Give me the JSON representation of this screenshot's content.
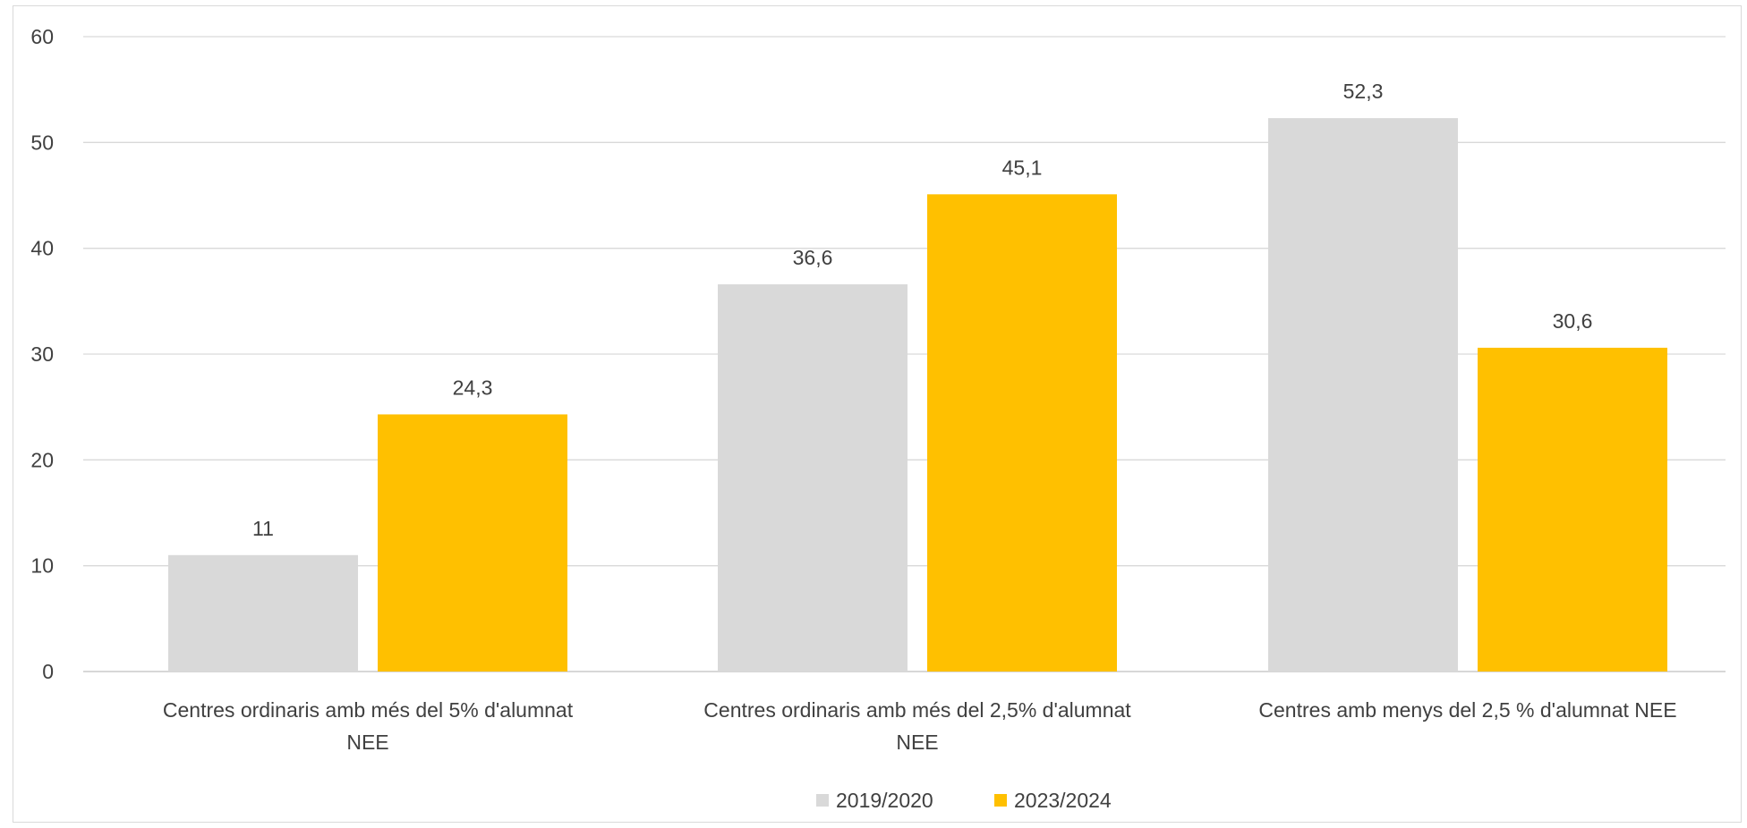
{
  "chart_data": {
    "type": "bar",
    "categories": [
      [
        "Centres ordinaris amb més del 5% d'alumnat",
        "NEE"
      ],
      [
        "Centres ordinaris amb més del 2,5% d'alumnat",
        "NEE"
      ],
      [
        "Centres amb menys del 2,5 % d'alumnat NEE"
      ]
    ],
    "series": [
      {
        "name": "2019/2020",
        "color": "#d9d9d9",
        "values": [
          11,
          36.6,
          52.3
        ],
        "labels": [
          "11",
          "36,6",
          "52,3"
        ]
      },
      {
        "name": "2023/2024",
        "color": "#ffc000",
        "values": [
          24.3,
          45.1,
          30.6
        ],
        "labels": [
          "24,3",
          "45,1",
          "30,6"
        ]
      }
    ],
    "ylim": [
      0,
      60
    ],
    "yticks": [
      0,
      10,
      20,
      30,
      40,
      50,
      60
    ],
    "grid": true,
    "legend_position": "bottom-center",
    "title": "",
    "xlabel": "",
    "ylabel": ""
  }
}
